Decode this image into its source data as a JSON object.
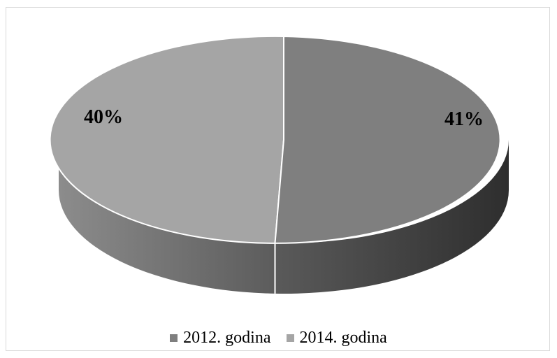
{
  "chart_data": {
    "type": "pie",
    "style": "3d",
    "title": "",
    "slices": [
      {
        "name": "2012. godina",
        "label": "41%",
        "value": 41,
        "color": "#7f7f7f"
      },
      {
        "name": "2014. godina",
        "label": "40%",
        "value": 40,
        "color": "#a5a5a5"
      }
    ],
    "legend_position": "bottom"
  }
}
